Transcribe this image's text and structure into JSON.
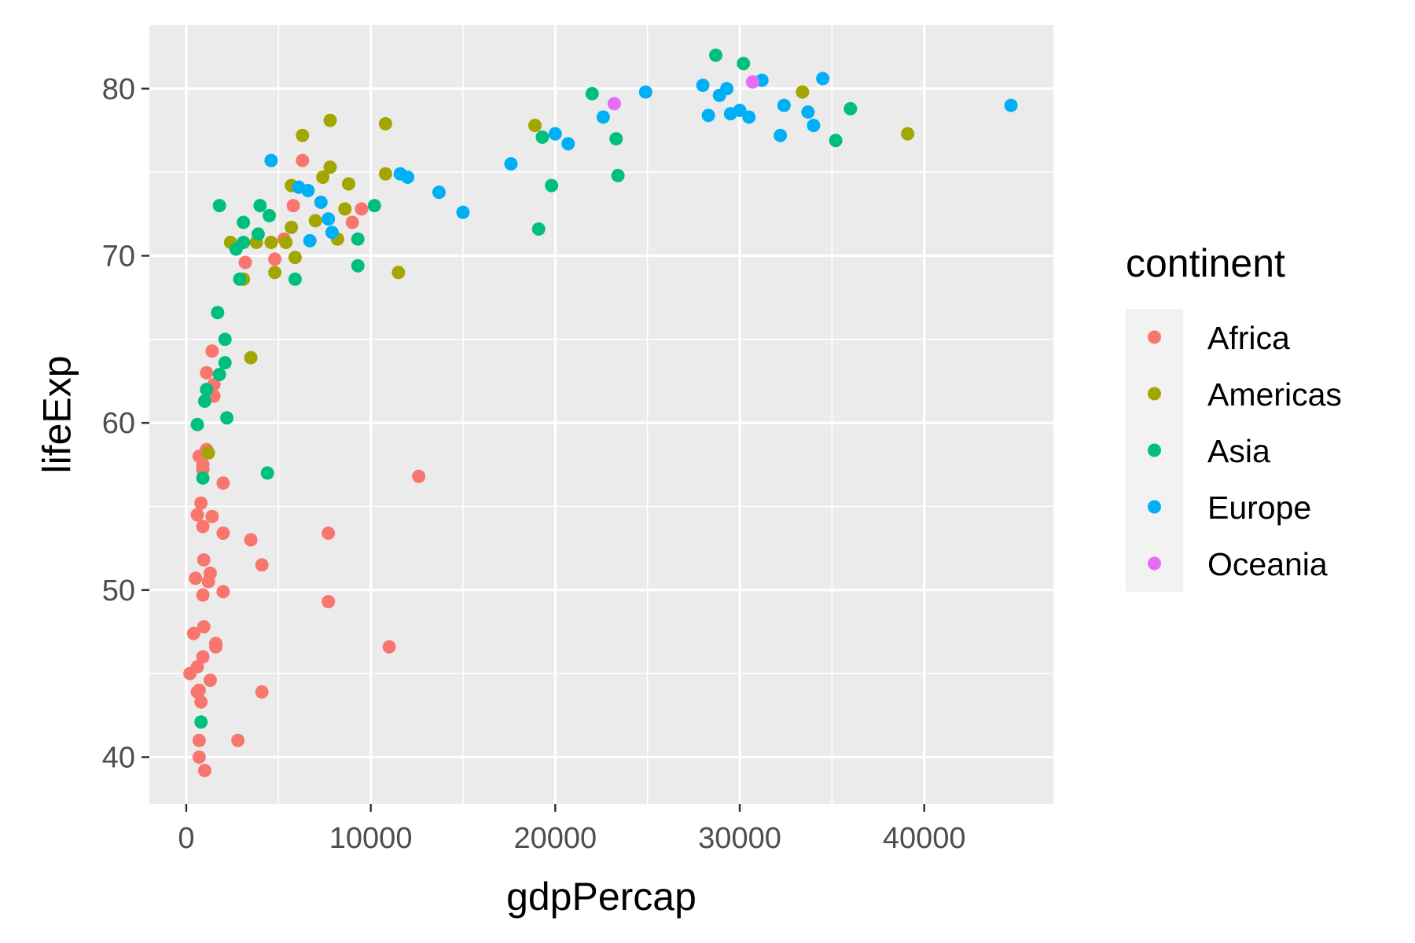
{
  "chart_data": {
    "type": "scatter",
    "title": "",
    "xlabel": "gdpPercap",
    "ylabel": "lifeExp",
    "xlim": [
      -2000,
      47000
    ],
    "ylim": [
      37.2,
      83.8
    ],
    "xticks": [
      0,
      10000,
      20000,
      30000,
      40000
    ],
    "yticks": [
      40,
      50,
      60,
      70,
      80
    ],
    "xtick_labels": [
      "0",
      "10000",
      "20000",
      "30000",
      "40000"
    ],
    "ytick_labels": [
      "40",
      "50",
      "60",
      "70",
      "80"
    ],
    "grid": true,
    "legend": {
      "title": "continent",
      "position": "right",
      "entries": [
        "Africa",
        "Americas",
        "Asia",
        "Europe",
        "Oceania"
      ]
    },
    "series": [
      {
        "name": "Africa",
        "color": "#F8766D",
        "points": [
          [
            200,
            45.0
          ],
          [
            400,
            47.4
          ],
          [
            500,
            50.7
          ],
          [
            600,
            54.5
          ],
          [
            600,
            45.4
          ],
          [
            600,
            43.9
          ],
          [
            700,
            58.0
          ],
          [
            700,
            44.0
          ],
          [
            700,
            41.0
          ],
          [
            700,
            40.0
          ],
          [
            800,
            55.2
          ],
          [
            800,
            43.3
          ],
          [
            900,
            57.5
          ],
          [
            900,
            57.2
          ],
          [
            900,
            53.8
          ],
          [
            900,
            49.7
          ],
          [
            900,
            46.0
          ],
          [
            950,
            51.8
          ],
          [
            950,
            47.8
          ],
          [
            1000,
            39.2
          ],
          [
            1100,
            63.0
          ],
          [
            1100,
            58.4
          ],
          [
            1200,
            50.5
          ],
          [
            1300,
            51.0
          ],
          [
            1300,
            44.6
          ],
          [
            1400,
            64.3
          ],
          [
            1400,
            54.4
          ],
          [
            1500,
            62.3
          ],
          [
            1500,
            61.6
          ],
          [
            1600,
            46.8
          ],
          [
            1600,
            46.6
          ],
          [
            2000,
            56.4
          ],
          [
            2000,
            53.4
          ],
          [
            2000,
            49.9
          ],
          [
            2800,
            41.0
          ],
          [
            3200,
            69.6
          ],
          [
            3500,
            53.0
          ],
          [
            4100,
            51.5
          ],
          [
            4100,
            43.9
          ],
          [
            4800,
            69.8
          ],
          [
            5300,
            71.0
          ],
          [
            5800,
            73.0
          ],
          [
            6300,
            75.7
          ],
          [
            7700,
            53.4
          ],
          [
            7700,
            49.3
          ],
          [
            9000,
            72.0
          ],
          [
            9500,
            72.8
          ],
          [
            11000,
            46.6
          ],
          [
            12600,
            56.8
          ]
        ]
      },
      {
        "name": "Americas",
        "color": "#A3A500",
        "points": [
          [
            1200,
            58.2
          ],
          [
            2400,
            70.8
          ],
          [
            3100,
            68.6
          ],
          [
            3500,
            63.9
          ],
          [
            3800,
            70.8
          ],
          [
            4600,
            70.8
          ],
          [
            4800,
            69.0
          ],
          [
            5400,
            70.8
          ],
          [
            5700,
            71.7
          ],
          [
            5700,
            74.2
          ],
          [
            5900,
            69.9
          ],
          [
            6300,
            77.2
          ],
          [
            7000,
            72.1
          ],
          [
            7400,
            74.7
          ],
          [
            7800,
            78.1
          ],
          [
            7800,
            75.3
          ],
          [
            8200,
            71.0
          ],
          [
            8600,
            72.8
          ],
          [
            8800,
            74.3
          ],
          [
            10800,
            77.9
          ],
          [
            10800,
            74.9
          ],
          [
            11500,
            69.0
          ],
          [
            18900,
            77.8
          ],
          [
            33400,
            79.8
          ],
          [
            39100,
            77.3
          ]
        ]
      },
      {
        "name": "Asia",
        "color": "#00BF7D",
        "points": [
          [
            600,
            59.9
          ],
          [
            800,
            42.1
          ],
          [
            900,
            56.7
          ],
          [
            1000,
            61.3
          ],
          [
            1100,
            62.0
          ],
          [
            1700,
            66.6
          ],
          [
            1800,
            62.9
          ],
          [
            1800,
            73.0
          ],
          [
            2100,
            63.6
          ],
          [
            2100,
            65.0
          ],
          [
            2200,
            60.3
          ],
          [
            2700,
            70.4
          ],
          [
            2900,
            68.6
          ],
          [
            3100,
            72.0
          ],
          [
            3100,
            70.8
          ],
          [
            3900,
            71.3
          ],
          [
            4000,
            73.0
          ],
          [
            4400,
            57.0
          ],
          [
            4500,
            72.4
          ],
          [
            5900,
            68.6
          ],
          [
            9300,
            69.4
          ],
          [
            9300,
            71.0
          ],
          [
            10200,
            73.0
          ],
          [
            19100,
            71.6
          ],
          [
            19300,
            77.1
          ],
          [
            19800,
            74.2
          ],
          [
            22000,
            79.7
          ],
          [
            23300,
            77.0
          ],
          [
            23400,
            74.8
          ],
          [
            28700,
            82.0
          ],
          [
            30200,
            81.5
          ],
          [
            35200,
            76.9
          ],
          [
            36000,
            78.8
          ]
        ]
      },
      {
        "name": "Europe",
        "color": "#00B0F6",
        "points": [
          [
            4600,
            75.7
          ],
          [
            6100,
            74.1
          ],
          [
            6600,
            73.9
          ],
          [
            6700,
            70.9
          ],
          [
            7300,
            73.2
          ],
          [
            7700,
            72.2
          ],
          [
            7900,
            71.4
          ],
          [
            11600,
            74.9
          ],
          [
            12000,
            74.7
          ],
          [
            13700,
            73.8
          ],
          [
            15000,
            72.6
          ],
          [
            17600,
            75.5
          ],
          [
            20000,
            77.3
          ],
          [
            20700,
            76.7
          ],
          [
            22600,
            78.3
          ],
          [
            24900,
            79.8
          ],
          [
            28000,
            80.2
          ],
          [
            28300,
            78.4
          ],
          [
            28900,
            79.6
          ],
          [
            29300,
            80.0
          ],
          [
            29500,
            78.5
          ],
          [
            30000,
            78.7
          ],
          [
            30500,
            78.3
          ],
          [
            31200,
            80.5
          ],
          [
            32200,
            77.2
          ],
          [
            32400,
            79.0
          ],
          [
            33700,
            78.6
          ],
          [
            34000,
            77.8
          ],
          [
            34500,
            80.6
          ],
          [
            44700,
            79.0
          ]
        ]
      },
      {
        "name": "Oceania",
        "color": "#E76BF3",
        "points": [
          [
            23200,
            79.1
          ],
          [
            30700,
            80.4
          ]
        ]
      }
    ]
  }
}
